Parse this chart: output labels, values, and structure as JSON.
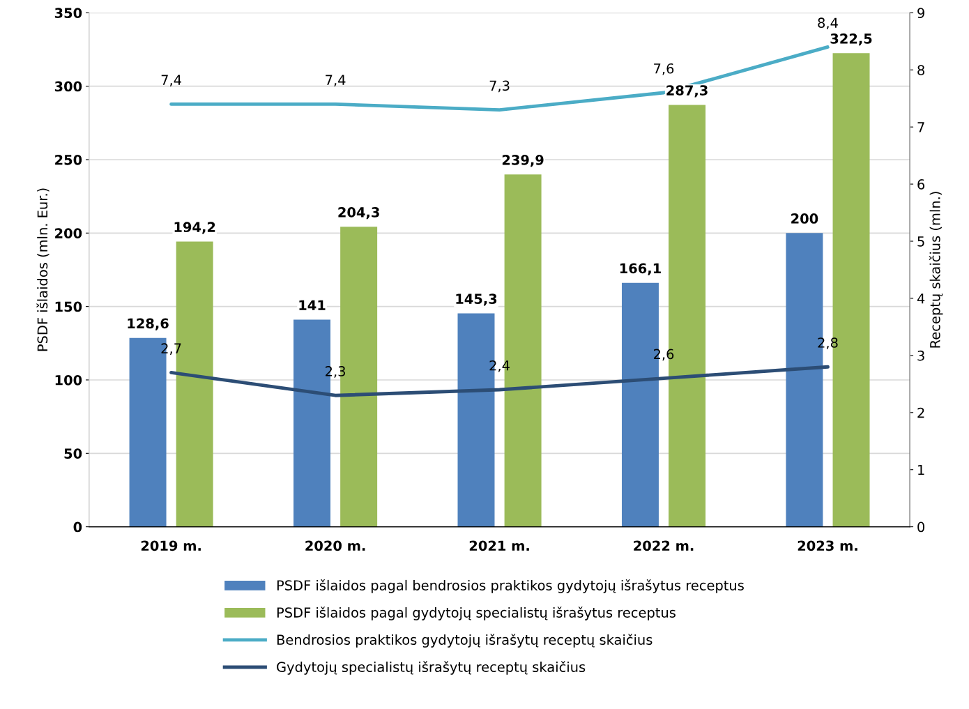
{
  "chart_data": {
    "type": "bar",
    "ylabel": "PSDF išlaidos (mln. Eur.)",
    "y2label": "Receptų skaičius (mln.)",
    "categories": [
      "2019 m.",
      "2020 m.",
      "2021 m.",
      "2022 m.",
      "2023 m."
    ],
    "series": [
      {
        "name": "PSDF išlaidos pagal bendrosios praktikos gydytojų išrašytus receptus",
        "color": "#4f81bd",
        "values": [
          128.6,
          141,
          145.3,
          166.1,
          200
        ],
        "value_labels": [
          "128,6",
          "141",
          "145,3",
          "166,1",
          "200"
        ]
      },
      {
        "name": "PSDF išlaidos pagal gydytojų specialistų išrašytus receptus",
        "color": "#9bbb59",
        "values": [
          194.2,
          204.3,
          239.9,
          287.3,
          322.5
        ],
        "value_labels": [
          "194,2",
          "204,3",
          "239,9",
          "287,3",
          "322,5"
        ]
      },
      {
        "name": "Bendrosios praktikos gydytojų išrašytų receptų skaičius",
        "type": "line",
        "axis": "y2",
        "color": "#4bacc6",
        "values": [
          7.4,
          7.4,
          7.3,
          7.6,
          8.4
        ],
        "value_labels": [
          "7,4",
          "7,4",
          "7,3",
          "7,6",
          "8,4"
        ]
      },
      {
        "name": "Gydytojų specialistų išrašytų receptų skaičius",
        "type": "line",
        "axis": "y2",
        "color": "#2c4d75",
        "values": [
          2.7,
          2.3,
          2.4,
          2.6,
          2.8
        ],
        "value_labels": [
          "2,7",
          "2,3",
          "2,4",
          "2,6",
          "2,8"
        ]
      }
    ],
    "ylim": [
      0,
      350
    ],
    "yticks": [
      0,
      50,
      100,
      150,
      200,
      250,
      300,
      350
    ],
    "y2lim": [
      0,
      9
    ],
    "y2ticks": [
      0,
      1,
      2,
      3,
      4,
      5,
      6,
      7,
      8,
      9
    ],
    "grid": "y",
    "legend": "bottom"
  }
}
